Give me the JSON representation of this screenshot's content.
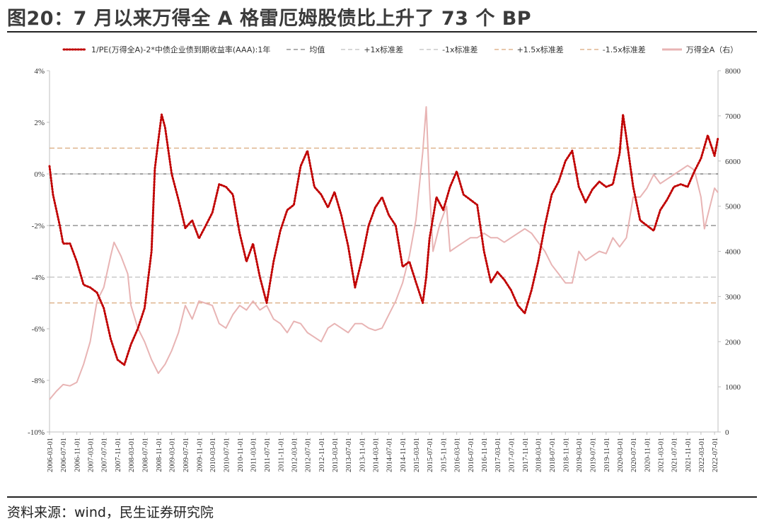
{
  "title": "图20：7 月以来万得全 A 格雷厄姆股债比上升了 73 个 BP",
  "source": "资料来源：wind，民生证券研究院",
  "legend": [
    {
      "label": "1/PE(万得全A)-2*中债企业债到期收益率(AAA):1年",
      "style": "dotted",
      "color": "#c00000"
    },
    {
      "label": "均值",
      "style": "dash",
      "color": "#7f7f7f"
    },
    {
      "label": "+1x标准差",
      "style": "dash",
      "color": "#bfbfbf"
    },
    {
      "label": "-1x标准差",
      "style": "dash",
      "color": "#bfbfbf"
    },
    {
      "label": "+1.5x标准差",
      "style": "dash",
      "color": "#d9a77a"
    },
    {
      "label": "-1.5x标准差",
      "style": "dash",
      "color": "#d9a77a"
    },
    {
      "label": "万得全A（右）",
      "style": "solid",
      "color": "#e8b4b4"
    }
  ],
  "chart_data": {
    "type": "line",
    "x_tick_labels": [
      "2006-03-01",
      "2006-07-01",
      "2006-11-01",
      "2007-03-01",
      "2007-07-01",
      "2007-11-01",
      "2008-03-01",
      "2008-07-01",
      "2008-11-01",
      "2009-03-01",
      "2009-07-01",
      "2009-11-01",
      "2010-03-01",
      "2010-07-01",
      "2010-11-01",
      "2011-03-01",
      "2011-07-01",
      "2011-11-01",
      "2012-03-01",
      "2012-07-01",
      "2012-11-01",
      "2013-03-01",
      "2013-07-01",
      "2013-11-01",
      "2014-03-01",
      "2014-07-01",
      "2014-11-01",
      "2015-03-01",
      "2015-07-01",
      "2015-11-01",
      "2016-03-01",
      "2016-07-01",
      "2016-11-01",
      "2017-03-01",
      "2017-07-01",
      "2017-11-01",
      "2018-03-01",
      "2018-07-01",
      "2018-11-01",
      "2019-03-01",
      "2019-07-01",
      "2019-11-01",
      "2020-03-01",
      "2020-07-01",
      "2020-11-01",
      "2021-03-01",
      "2021-07-01",
      "2021-11-01",
      "2022-03-01",
      "2022-07-01"
    ],
    "y_left": {
      "min": -10,
      "max": 4,
      "step": 2,
      "format": "percent"
    },
    "y_right": {
      "min": 0,
      "max": 8000,
      "step": 1000
    },
    "reference_lines": [
      {
        "name": "均值",
        "y": -2.0,
        "color": "#7f7f7f"
      },
      {
        "name": "+1x标准差",
        "y": 0.0,
        "color": "#bfbfbf"
      },
      {
        "name": "-1x标准差",
        "y": -4.0,
        "color": "#bfbfbf"
      },
      {
        "name": "+1.5x标准差",
        "y": 1.0,
        "color": "#d9a77a"
      },
      {
        "name": "-1.5x标准差",
        "y": -5.0,
        "color": "#d9a77a"
      }
    ],
    "series": [
      {
        "name": "1/PE(万得全A)-2*中债企业债到期收益率(AAA):1年",
        "axis": "left",
        "color": "#c00000",
        "points": [
          [
            "2006-03-01",
            0.3
          ],
          [
            "2006-04-01",
            -0.8
          ],
          [
            "2006-06-01",
            -2.0
          ],
          [
            "2006-07-01",
            -2.7
          ],
          [
            "2006-09-01",
            -2.7
          ],
          [
            "2006-11-01",
            -3.4
          ],
          [
            "2007-01-01",
            -4.3
          ],
          [
            "2007-03-01",
            -4.4
          ],
          [
            "2007-05-01",
            -4.6
          ],
          [
            "2007-07-01",
            -5.2
          ],
          [
            "2007-09-01",
            -6.4
          ],
          [
            "2007-11-01",
            -7.2
          ],
          [
            "2008-01-01",
            -7.4
          ],
          [
            "2008-03-01",
            -6.6
          ],
          [
            "2008-05-01",
            -6.0
          ],
          [
            "2008-07-01",
            -5.2
          ],
          [
            "2008-09-01",
            -3.0
          ],
          [
            "2008-10-01",
            0.2
          ],
          [
            "2008-11-01",
            1.3
          ],
          [
            "2008-12-01",
            2.3
          ],
          [
            "2009-01-01",
            1.8
          ],
          [
            "2009-03-01",
            0.0
          ],
          [
            "2009-05-01",
            -1.0
          ],
          [
            "2009-07-01",
            -2.1
          ],
          [
            "2009-09-01",
            -1.8
          ],
          [
            "2009-11-01",
            -2.5
          ],
          [
            "2010-01-01",
            -2.0
          ],
          [
            "2010-03-01",
            -1.5
          ],
          [
            "2010-05-01",
            -0.4
          ],
          [
            "2010-07-01",
            -0.5
          ],
          [
            "2010-09-01",
            -0.8
          ],
          [
            "2010-11-01",
            -2.3
          ],
          [
            "2011-01-01",
            -3.4
          ],
          [
            "2011-03-01",
            -2.7
          ],
          [
            "2011-05-01",
            -4.0
          ],
          [
            "2011-07-01",
            -5.0
          ],
          [
            "2011-09-01",
            -3.4
          ],
          [
            "2011-11-01",
            -2.2
          ],
          [
            "2012-01-01",
            -1.4
          ],
          [
            "2012-03-01",
            -1.2
          ],
          [
            "2012-05-01",
            0.3
          ],
          [
            "2012-07-01",
            0.9
          ],
          [
            "2012-09-01",
            -0.5
          ],
          [
            "2012-11-01",
            -0.8
          ],
          [
            "2013-01-01",
            -1.3
          ],
          [
            "2013-03-01",
            -0.7
          ],
          [
            "2013-05-01",
            -1.6
          ],
          [
            "2013-07-01",
            -2.8
          ],
          [
            "2013-09-01",
            -4.4
          ],
          [
            "2013-11-01",
            -3.3
          ],
          [
            "2014-01-01",
            -2.0
          ],
          [
            "2014-03-01",
            -1.3
          ],
          [
            "2014-05-01",
            -0.9
          ],
          [
            "2014-07-01",
            -1.6
          ],
          [
            "2014-09-01",
            -2.0
          ],
          [
            "2014-11-01",
            -3.6
          ],
          [
            "2015-01-01",
            -3.4
          ],
          [
            "2015-03-01",
            -4.2
          ],
          [
            "2015-05-01",
            -5.0
          ],
          [
            "2015-06-01",
            -4.0
          ],
          [
            "2015-07-01",
            -2.5
          ],
          [
            "2015-09-01",
            -0.9
          ],
          [
            "2015-11-01",
            -1.4
          ],
          [
            "2016-01-01",
            -0.5
          ],
          [
            "2016-03-01",
            0.1
          ],
          [
            "2016-05-01",
            -0.8
          ],
          [
            "2016-07-01",
            -1.0
          ],
          [
            "2016-09-01",
            -1.2
          ],
          [
            "2016-11-01",
            -3.0
          ],
          [
            "2017-01-01",
            -4.2
          ],
          [
            "2017-03-01",
            -3.8
          ],
          [
            "2017-05-01",
            -4.1
          ],
          [
            "2017-07-01",
            -4.5
          ],
          [
            "2017-09-01",
            -5.1
          ],
          [
            "2017-11-01",
            -5.4
          ],
          [
            "2018-01-01",
            -4.5
          ],
          [
            "2018-03-01",
            -3.4
          ],
          [
            "2018-05-01",
            -2.0
          ],
          [
            "2018-07-01",
            -0.8
          ],
          [
            "2018-09-01",
            -0.3
          ],
          [
            "2018-11-01",
            0.5
          ],
          [
            "2019-01-01",
            0.9
          ],
          [
            "2019-03-01",
            -0.5
          ],
          [
            "2019-05-01",
            -1.1
          ],
          [
            "2019-07-01",
            -0.6
          ],
          [
            "2019-09-01",
            -0.3
          ],
          [
            "2019-11-01",
            -0.5
          ],
          [
            "2020-01-01",
            -0.4
          ],
          [
            "2020-03-01",
            0.8
          ],
          [
            "2020-04-01",
            2.3
          ],
          [
            "2020-05-01",
            1.4
          ],
          [
            "2020-07-01",
            -0.5
          ],
          [
            "2020-09-01",
            -1.8
          ],
          [
            "2020-11-01",
            -2.0
          ],
          [
            "2021-01-01",
            -2.2
          ],
          [
            "2021-03-01",
            -1.4
          ],
          [
            "2021-05-01",
            -1.0
          ],
          [
            "2021-07-01",
            -0.5
          ],
          [
            "2021-09-01",
            -0.4
          ],
          [
            "2021-11-01",
            -0.5
          ],
          [
            "2022-01-01",
            0.1
          ],
          [
            "2022-03-01",
            0.6
          ],
          [
            "2022-05-01",
            1.5
          ],
          [
            "2022-07-01",
            0.7
          ],
          [
            "2022-08-01",
            1.4
          ]
        ]
      },
      {
        "name": "万得全A（右）",
        "axis": "right",
        "color": "#e8b4b4",
        "points": [
          [
            "2006-03-01",
            720
          ],
          [
            "2006-05-01",
            900
          ],
          [
            "2006-07-01",
            1050
          ],
          [
            "2006-09-01",
            1020
          ],
          [
            "2006-11-01",
            1100
          ],
          [
            "2007-01-01",
            1500
          ],
          [
            "2007-03-01",
            2000
          ],
          [
            "2007-05-01",
            2900
          ],
          [
            "2007-07-01",
            3200
          ],
          [
            "2007-09-01",
            3900
          ],
          [
            "2007-10-01",
            4200
          ],
          [
            "2007-12-01",
            3900
          ],
          [
            "2008-02-01",
            3500
          ],
          [
            "2008-03-01",
            2800
          ],
          [
            "2008-05-01",
            2300
          ],
          [
            "2008-07-01",
            2000
          ],
          [
            "2008-09-01",
            1600
          ],
          [
            "2008-11-01",
            1300
          ],
          [
            "2009-01-01",
            1500
          ],
          [
            "2009-03-01",
            1800
          ],
          [
            "2009-05-01",
            2200
          ],
          [
            "2009-07-01",
            2800
          ],
          [
            "2009-09-01",
            2500
          ],
          [
            "2009-11-01",
            2900
          ],
          [
            "2010-01-01",
            2850
          ],
          [
            "2010-03-01",
            2800
          ],
          [
            "2010-05-01",
            2400
          ],
          [
            "2010-07-01",
            2300
          ],
          [
            "2010-09-01",
            2600
          ],
          [
            "2010-11-01",
            2800
          ],
          [
            "2011-01-01",
            2700
          ],
          [
            "2011-03-01",
            2900
          ],
          [
            "2011-05-01",
            2700
          ],
          [
            "2011-07-01",
            2800
          ],
          [
            "2011-09-01",
            2500
          ],
          [
            "2011-11-01",
            2400
          ],
          [
            "2012-01-01",
            2200
          ],
          [
            "2012-03-01",
            2450
          ],
          [
            "2012-05-01",
            2400
          ],
          [
            "2012-07-01",
            2200
          ],
          [
            "2012-09-01",
            2100
          ],
          [
            "2012-11-01",
            2000
          ],
          [
            "2013-01-01",
            2300
          ],
          [
            "2013-03-01",
            2400
          ],
          [
            "2013-05-01",
            2300
          ],
          [
            "2013-07-01",
            2200
          ],
          [
            "2013-09-01",
            2400
          ],
          [
            "2013-11-01",
            2400
          ],
          [
            "2014-01-01",
            2300
          ],
          [
            "2014-03-01",
            2250
          ],
          [
            "2014-05-01",
            2300
          ],
          [
            "2014-07-01",
            2600
          ],
          [
            "2014-09-01",
            2900
          ],
          [
            "2014-11-01",
            3300
          ],
          [
            "2015-01-01",
            3900
          ],
          [
            "2015-03-01",
            4700
          ],
          [
            "2015-05-01",
            6200
          ],
          [
            "2015-06-01",
            7200
          ],
          [
            "2015-07-01",
            5400
          ],
          [
            "2015-08-01",
            4000
          ],
          [
            "2015-10-01",
            4600
          ],
          [
            "2015-12-01",
            5000
          ],
          [
            "2016-01-01",
            4000
          ],
          [
            "2016-03-01",
            4100
          ],
          [
            "2016-05-01",
            4200
          ],
          [
            "2016-07-01",
            4300
          ],
          [
            "2016-09-01",
            4300
          ],
          [
            "2016-11-01",
            4400
          ],
          [
            "2017-01-01",
            4300
          ],
          [
            "2017-03-01",
            4300
          ],
          [
            "2017-05-01",
            4200
          ],
          [
            "2017-07-01",
            4300
          ],
          [
            "2017-09-01",
            4400
          ],
          [
            "2017-11-01",
            4500
          ],
          [
            "2018-01-01",
            4400
          ],
          [
            "2018-03-01",
            4200
          ],
          [
            "2018-05-01",
            4000
          ],
          [
            "2018-07-01",
            3700
          ],
          [
            "2018-09-01",
            3500
          ],
          [
            "2018-11-01",
            3300
          ],
          [
            "2019-01-01",
            3300
          ],
          [
            "2019-03-01",
            4000
          ],
          [
            "2019-05-01",
            3800
          ],
          [
            "2019-07-01",
            3900
          ],
          [
            "2019-09-01",
            4000
          ],
          [
            "2019-11-01",
            3950
          ],
          [
            "2020-01-01",
            4300
          ],
          [
            "2020-03-01",
            4100
          ],
          [
            "2020-05-01",
            4300
          ],
          [
            "2020-07-01",
            5200
          ],
          [
            "2020-09-01",
            5200
          ],
          [
            "2020-11-01",
            5400
          ],
          [
            "2021-01-01",
            5700
          ],
          [
            "2021-03-01",
            5500
          ],
          [
            "2021-05-01",
            5600
          ],
          [
            "2021-07-01",
            5700
          ],
          [
            "2021-09-01",
            5800
          ],
          [
            "2021-11-01",
            5900
          ],
          [
            "2022-01-01",
            5800
          ],
          [
            "2022-03-01",
            5200
          ],
          [
            "2022-04-01",
            4500
          ],
          [
            "2022-05-01",
            4800
          ],
          [
            "2022-07-01",
            5400
          ],
          [
            "2022-08-01",
            5300
          ]
        ]
      }
    ]
  }
}
